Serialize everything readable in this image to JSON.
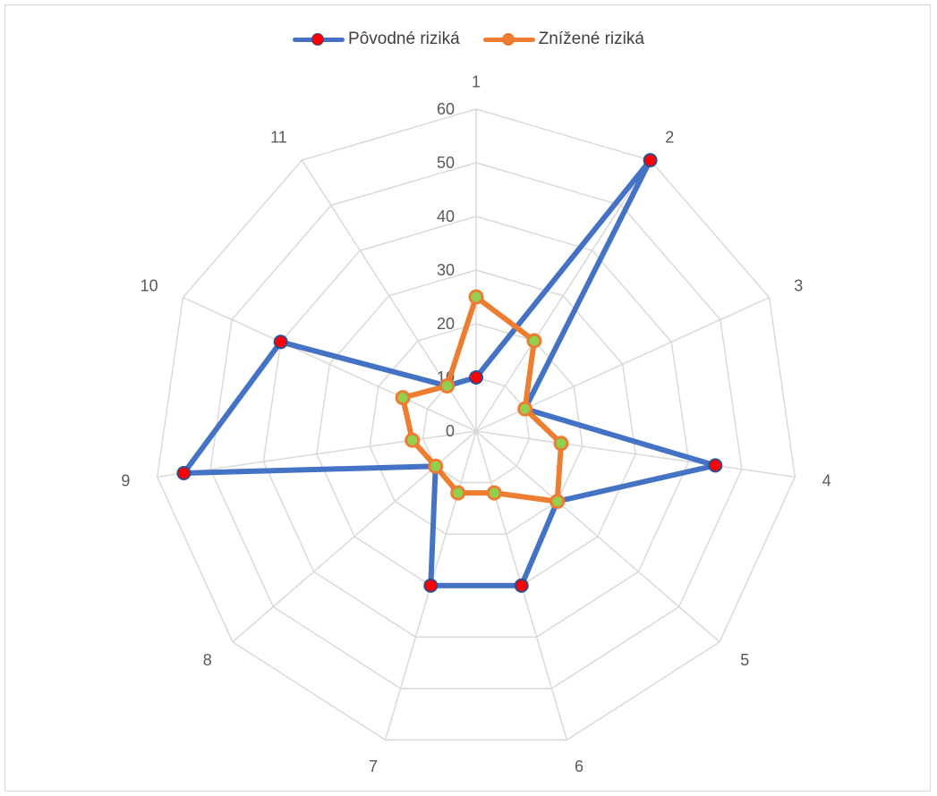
{
  "chart_data": {
    "type": "radar",
    "categories": [
      "1",
      "2",
      "3",
      "4",
      "5",
      "6",
      "7",
      "8",
      "9",
      "10",
      "11"
    ],
    "rticks": [
      "0",
      "10",
      "20",
      "30",
      "40",
      "50",
      "60"
    ],
    "rlim": [
      0,
      60
    ],
    "grid": true,
    "legend_position": "top-center",
    "series": [
      {
        "name": "Pôvodné riziká",
        "values": [
          10,
          60,
          10,
          45,
          20,
          30,
          30,
          10,
          55,
          40,
          10
        ],
        "line_color": "#4472C4",
        "marker_color": "#FF0000"
      },
      {
        "name": "Znížené riziká",
        "values": [
          25,
          20,
          10,
          16,
          20,
          12,
          12,
          10,
          12,
          15,
          10
        ],
        "line_color": "#ED7D31",
        "marker_color": "#92D050"
      }
    ]
  }
}
